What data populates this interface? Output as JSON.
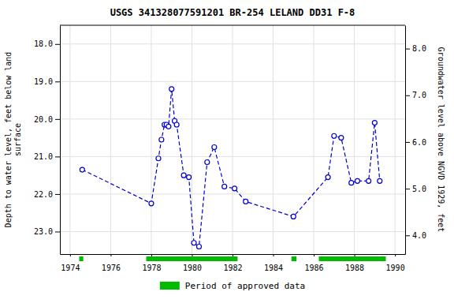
{
  "chart_data": {
    "type": "line",
    "title": "USGS 341328077591201 BR-254 LELAND DD31 F-8",
    "ylabel": "Depth to water level, feet below land\nsurface",
    "y2label": "Groundwater level above NGVD 1929, feet",
    "x": [
      1974.6,
      1978.0,
      1978.35,
      1978.5,
      1978.65,
      1978.75,
      1978.85,
      1979.0,
      1979.15,
      1979.25,
      1979.6,
      1979.85,
      1980.1,
      1980.35,
      1980.75,
      1981.1,
      1981.6,
      1982.1,
      1982.65,
      1985.0,
      1986.7,
      1987.0,
      1987.35,
      1987.85,
      1988.15,
      1988.7,
      1989.0,
      1989.25
    ],
    "series": [
      {
        "color": "#0000cc",
        "marker": "circle",
        "line_style": "dashed",
        "values": [
          21.35,
          22.25,
          21.05,
          20.55,
          20.15,
          20.15,
          20.2,
          19.2,
          20.05,
          20.15,
          21.5,
          21.55,
          23.3,
          23.4,
          21.15,
          20.75,
          21.8,
          21.85,
          22.2,
          22.6,
          21.55,
          20.45,
          20.5,
          21.7,
          21.65,
          21.65,
          20.1,
          21.65
        ]
      }
    ],
    "xlim": [
      1973.5,
      1990.5
    ],
    "xticks": [
      1974,
      1976,
      1978,
      1980,
      1982,
      1984,
      1986,
      1988,
      1990
    ],
    "ylim": [
      23.6,
      17.5
    ],
    "yticks": [
      {
        "value": 18.0,
        "label": "18.0"
      },
      {
        "value": 19.0,
        "label": "19.0"
      },
      {
        "value": 20.0,
        "label": "20.0"
      },
      {
        "value": 21.0,
        "label": "21.0"
      },
      {
        "value": 22.0,
        "label": "22.0"
      },
      {
        "value": 23.0,
        "label": "23.0"
      }
    ],
    "y2lim": [
      3.6,
      8.5
    ],
    "y2ticks": [
      {
        "value": 8.0,
        "label": "8.0"
      },
      {
        "value": 7.0,
        "label": "7.0"
      },
      {
        "value": 6.0,
        "label": "6.0"
      },
      {
        "value": 5.0,
        "label": "5.0"
      },
      {
        "value": 4.0,
        "label": "4.0"
      }
    ],
    "approved_periods": {
      "name": "Period of approved data",
      "color": "#00bb00",
      "ranges": [
        [
          1974.45,
          1974.65
        ],
        [
          1977.75,
          1982.25
        ],
        [
          1984.9,
          1985.15
        ],
        [
          1986.25,
          1989.55
        ]
      ]
    },
    "grid": true,
    "legend": "bottom"
  }
}
